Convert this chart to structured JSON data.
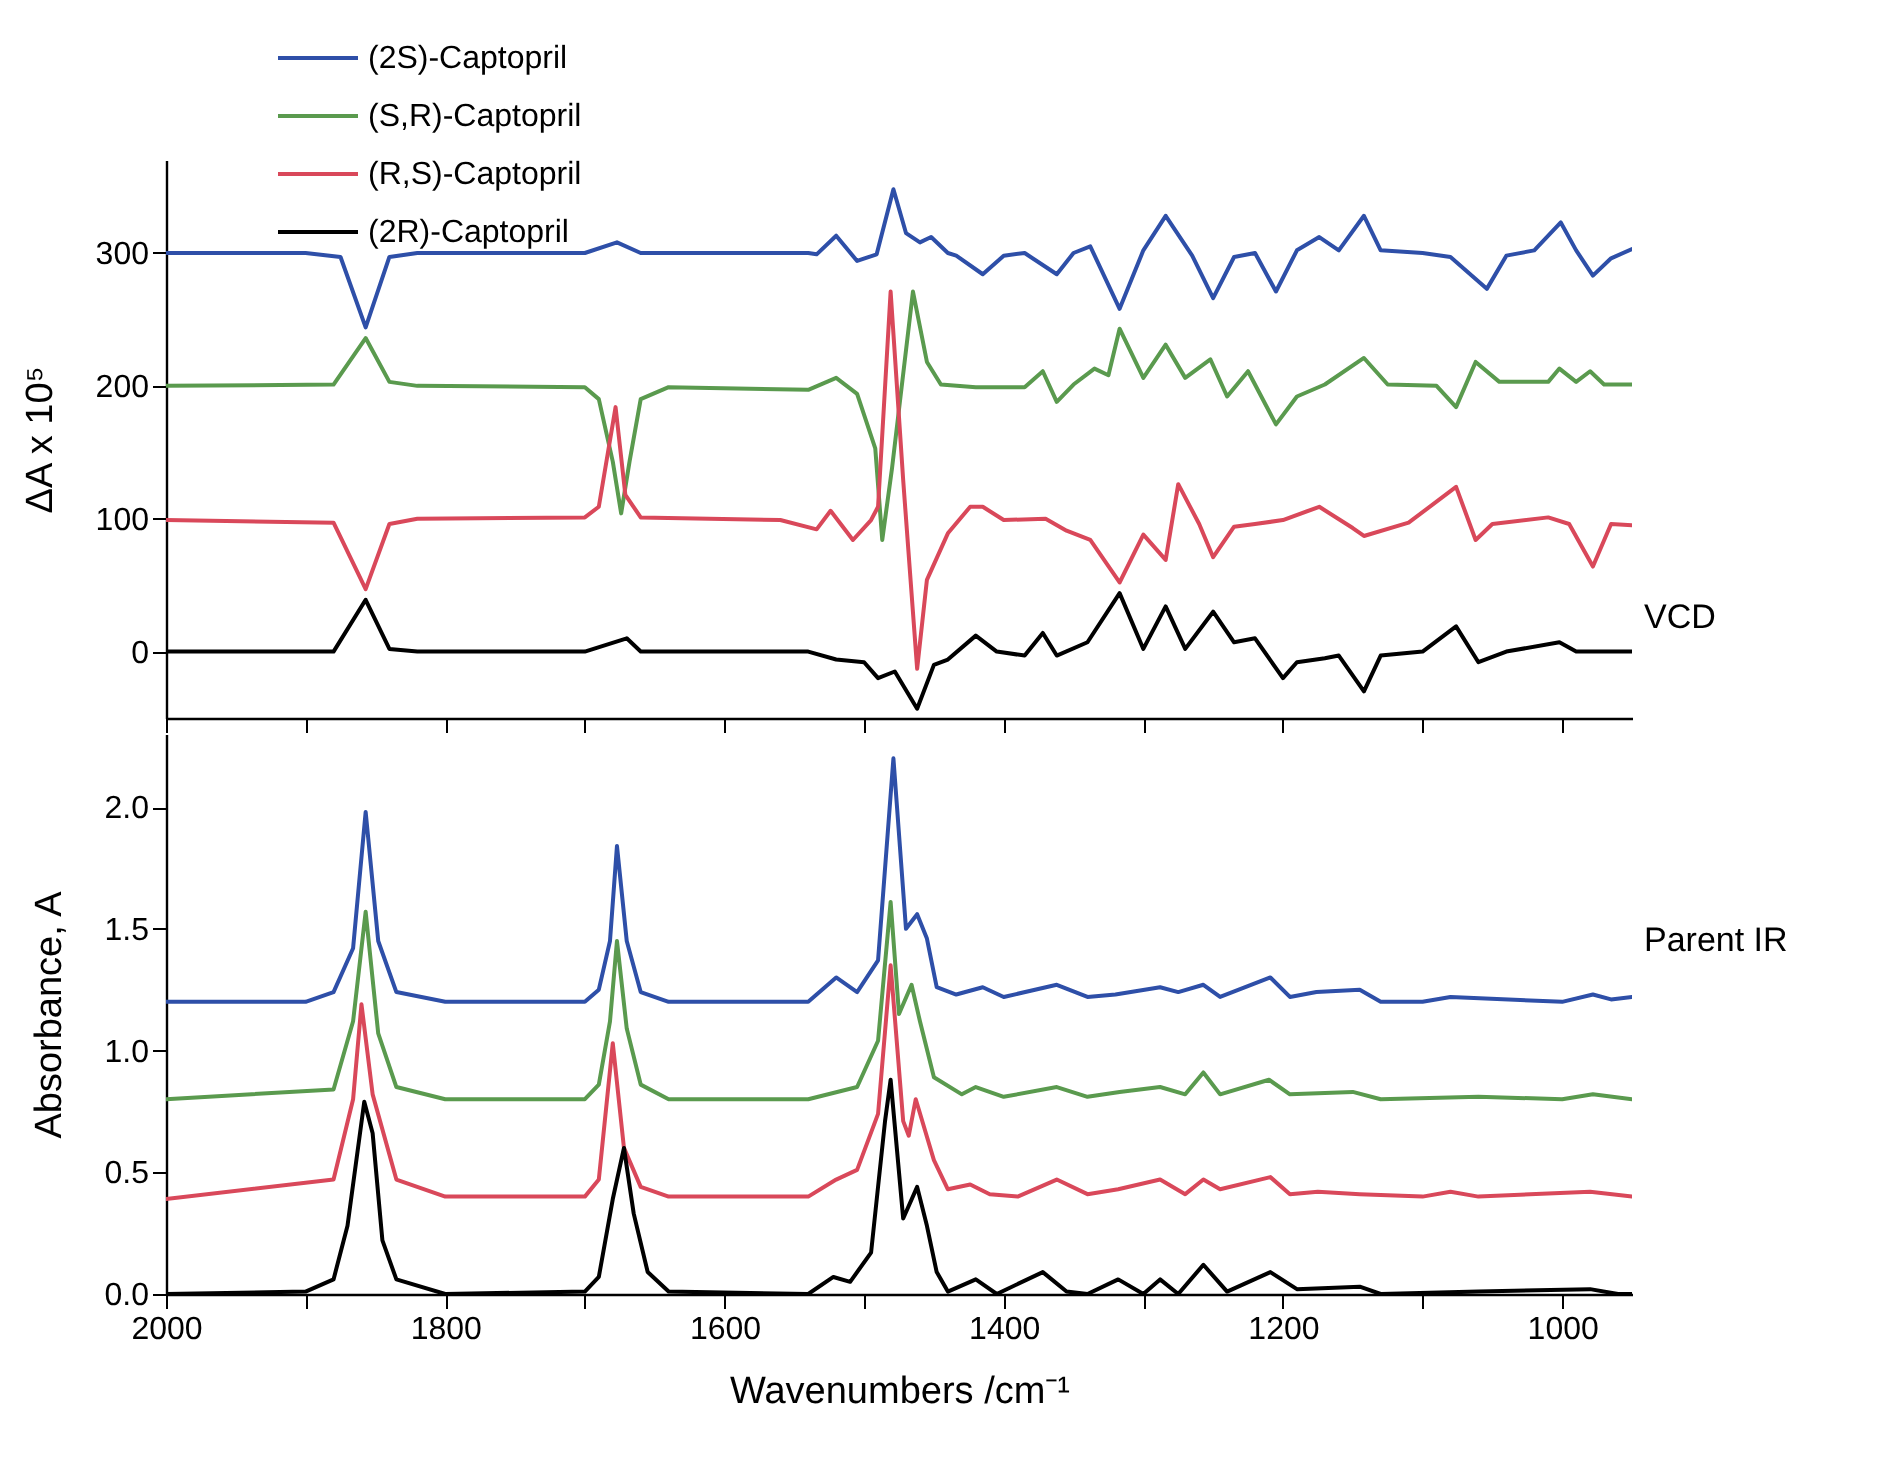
{
  "chart_data": [
    {
      "type": "line",
      "ylabel": "ΔA x 10⁵",
      "xlim": [
        2000,
        950
      ],
      "ylim": [
        -50,
        370
      ],
      "tick_labels": "y",
      "legend": "top left",
      "annotations": [
        "VCD"
      ],
      "xticks": [
        2000,
        {
          "value": 1900,
          "label": null
        },
        1800,
        {
          "value": 1700,
          "label": null
        },
        1600,
        {
          "value": 1500,
          "label": null
        },
        1400,
        {
          "value": 1300,
          "label": null
        },
        1200,
        {
          "value": 1100,
          "label": null
        },
        1000
      ],
      "yticks": [
        0,
        100,
        200,
        300
      ],
      "series": [
        {
          "name": "(2S)-Captopril",
          "color": "#2e4fa8",
          "x": [
            2000,
            1900,
            1875,
            1857,
            1840,
            1820,
            1700,
            1677,
            1660,
            1540,
            1534,
            1520,
            1505,
            1491,
            1479,
            1470,
            1460,
            1452,
            1440,
            1434,
            1415,
            1400,
            1385,
            1362,
            1350,
            1338,
            1317,
            1300,
            1284,
            1265,
            1250,
            1235,
            1220,
            1205,
            1190,
            1174,
            1160,
            1142,
            1130,
            1100,
            1080,
            1054,
            1040,
            1020,
            1001,
            990,
            978,
            965,
            950
          ],
          "values": [
            300,
            300,
            297,
            244,
            297,
            300,
            300,
            308,
            300,
            300,
            299,
            313,
            294,
            299,
            348,
            315,
            308,
            312,
            300,
            298,
            284,
            298,
            300,
            284,
            300,
            305,
            258,
            302,
            328,
            298,
            266,
            297,
            300,
            271,
            302,
            312,
            302,
            328,
            302,
            300,
            297,
            273,
            298,
            302,
            323,
            302,
            283,
            296,
            303
          ]
        },
        {
          "name": "(S,R)-Captopril",
          "color": "#5a9a4e",
          "x": [
            2000,
            1880,
            1857,
            1840,
            1820,
            1700,
            1690,
            1680,
            1674,
            1668,
            1660,
            1640,
            1540,
            1520,
            1505,
            1492,
            1487,
            1480,
            1465,
            1455,
            1445,
            1420,
            1385,
            1372,
            1362,
            1350,
            1335,
            1325,
            1317,
            1300,
            1284,
            1270,
            1252,
            1240,
            1225,
            1205,
            1190,
            1170,
            1142,
            1125,
            1090,
            1076,
            1062,
            1045,
            1010,
            1002,
            990,
            980,
            970,
            950
          ],
          "values": [
            200,
            201,
            236,
            203,
            200,
            199,
            190,
            143,
            104,
            143,
            190,
            199,
            197,
            206,
            194,
            153,
            84,
            138,
            271,
            218,
            201,
            199,
            199,
            211,
            188,
            201,
            213,
            208,
            243,
            206,
            231,
            206,
            220,
            192,
            211,
            171,
            192,
            201,
            221,
            201,
            200,
            184,
            218,
            203,
            203,
            213,
            203,
            211,
            201,
            201
          ]
        },
        {
          "name": "(R,S)-Captopril",
          "color": "#d9485a",
          "x": [
            2000,
            1880,
            1857,
            1840,
            1820,
            1700,
            1690,
            1678,
            1671,
            1660,
            1560,
            1534,
            1524,
            1508,
            1495,
            1490,
            1481,
            1472,
            1462,
            1455,
            1440,
            1424,
            1415,
            1400,
            1370,
            1355,
            1338,
            1317,
            1300,
            1284,
            1275,
            1260,
            1250,
            1235,
            1220,
            1200,
            1174,
            1150,
            1142,
            1110,
            1076,
            1062,
            1050,
            1010,
            995,
            978,
            965,
            950
          ],
          "values": [
            99,
            97,
            47,
            96,
            100,
            101,
            109,
            184,
            118,
            101,
            99,
            92,
            106,
            84,
            99,
            109,
            271,
            129,
            -13,
            54,
            89,
            109,
            109,
            99,
            100,
            91,
            84,
            52,
            88,
            69,
            126,
            96,
            71,
            94,
            96,
            99,
            109,
            93,
            87,
            97,
            124,
            84,
            96,
            101,
            96,
            64,
            96,
            95
          ]
        },
        {
          "name": "(2R)-Captopril",
          "color": "#000000",
          "x": [
            2000,
            1880,
            1857,
            1840,
            1820,
            1700,
            1670,
            1660,
            1540,
            1520,
            1500,
            1490,
            1478,
            1462,
            1450,
            1440,
            1420,
            1405,
            1385,
            1372,
            1362,
            1340,
            1317,
            1300,
            1284,
            1270,
            1250,
            1235,
            1220,
            1200,
            1190,
            1170,
            1160,
            1142,
            1130,
            1100,
            1076,
            1060,
            1040,
            1002,
            990,
            950
          ],
          "values": [
            0,
            0,
            39,
            2,
            0,
            0,
            10,
            0,
            0,
            -6,
            -8,
            -20,
            -15,
            -43,
            -10,
            -6,
            12,
            0,
            -3,
            14,
            -3,
            7,
            44,
            2,
            34,
            2,
            30,
            7,
            10,
            -20,
            -8,
            -5,
            -3,
            -30,
            -3,
            0,
            19,
            -8,
            0,
            7,
            0,
            0
          ]
        }
      ]
    },
    {
      "type": "line",
      "xlabel": "Wavenumbers /cm⁻¹",
      "ylabel": "Absorbance, A",
      "xlim": [
        2000,
        950
      ],
      "ylim": [
        0,
        2.3
      ],
      "annotations": [
        "Parent IR"
      ],
      "xticks": [
        2000,
        {
          "value": 1900,
          "label": null
        },
        1800,
        {
          "value": 1700,
          "label": null
        },
        1600,
        {
          "value": 1500,
          "label": null
        },
        1400,
        {
          "value": 1300,
          "label": null
        },
        1200,
        {
          "value": 1100,
          "label": null
        },
        1000
      ],
      "yticks": [
        {
          "value": 0,
          "label": "0.0"
        },
        0.5,
        {
          "value": 1,
          "label": "1.0"
        },
        1.5,
        {
          "value": 2,
          "label": "2.0"
        }
      ],
      "series": [
        {
          "color": "#2e4fa8",
          "x": [
            2000,
            1900,
            1880,
            1866,
            1857,
            1848,
            1835,
            1800,
            1700,
            1690,
            1682,
            1677,
            1670,
            1660,
            1640,
            1540,
            1520,
            1505,
            1490,
            1479,
            1470,
            1462,
            1455,
            1448,
            1434,
            1415,
            1400,
            1362,
            1340,
            1320,
            1288,
            1275,
            1257,
            1245,
            1209,
            1195,
            1176,
            1145,
            1130,
            1100,
            1080,
            1000,
            978,
            965,
            950
          ],
          "values": [
            1.2,
            1.2,
            1.24,
            1.42,
            1.98,
            1.45,
            1.24,
            1.2,
            1.2,
            1.25,
            1.45,
            1.84,
            1.45,
            1.24,
            1.2,
            1.2,
            1.3,
            1.24,
            1.37,
            2.2,
            1.5,
            1.56,
            1.46,
            1.26,
            1.23,
            1.26,
            1.22,
            1.27,
            1.22,
            1.23,
            1.26,
            1.24,
            1.27,
            1.22,
            1.3,
            1.22,
            1.24,
            1.25,
            1.2,
            1.2,
            1.22,
            1.2,
            1.23,
            1.21,
            1.22
          ]
        },
        {
          "color": "#5a9a4e",
          "x": [
            2000,
            1880,
            1866,
            1857,
            1848,
            1835,
            1800,
            1700,
            1690,
            1682,
            1677,
            1670,
            1660,
            1640,
            1540,
            1505,
            1490,
            1481,
            1475,
            1466,
            1460,
            1450,
            1430,
            1420,
            1400,
            1362,
            1340,
            1317,
            1288,
            1270,
            1257,
            1245,
            1210,
            1195,
            1150,
            1130,
            1060,
            1000,
            978,
            950
          ],
          "values": [
            0.8,
            0.84,
            1.12,
            1.57,
            1.07,
            0.85,
            0.8,
            0.8,
            0.86,
            1.12,
            1.45,
            1.09,
            0.86,
            0.8,
            0.8,
            0.85,
            1.04,
            1.61,
            1.15,
            1.27,
            1.12,
            0.89,
            0.82,
            0.85,
            0.81,
            0.85,
            0.81,
            0.83,
            0.85,
            0.82,
            0.91,
            0.82,
            0.88,
            0.82,
            0.83,
            0.8,
            0.81,
            0.8,
            0.82,
            0.8
          ]
        },
        {
          "color": "#d9485a",
          "x": [
            2000,
            1880,
            1866,
            1860,
            1852,
            1835,
            1800,
            1700,
            1690,
            1680,
            1672,
            1660,
            1640,
            1540,
            1520,
            1505,
            1490,
            1481,
            1472,
            1468,
            1463,
            1450,
            1440,
            1424,
            1410,
            1390,
            1362,
            1340,
            1318,
            1288,
            1270,
            1257,
            1245,
            1209,
            1195,
            1175,
            1145,
            1100,
            1080,
            1060,
            980,
            950
          ],
          "values": [
            0.39,
            0.47,
            0.8,
            1.19,
            0.82,
            0.47,
            0.4,
            0.4,
            0.47,
            1.03,
            0.6,
            0.44,
            0.4,
            0.4,
            0.47,
            0.51,
            0.74,
            1.35,
            0.71,
            0.65,
            0.8,
            0.55,
            0.43,
            0.45,
            0.41,
            0.4,
            0.47,
            0.41,
            0.43,
            0.47,
            0.41,
            0.47,
            0.43,
            0.48,
            0.41,
            0.42,
            0.41,
            0.4,
            0.42,
            0.4,
            0.42,
            0.4
          ]
        },
        {
          "color": "#000000",
          "x": [
            2000,
            1900,
            1880,
            1870,
            1858,
            1852,
            1845,
            1835,
            1800,
            1700,
            1690,
            1680,
            1672,
            1665,
            1655,
            1640,
            1540,
            1522,
            1510,
            1495,
            1485,
            1481,
            1472,
            1462,
            1455,
            1448,
            1440,
            1420,
            1405,
            1372,
            1355,
            1340,
            1318,
            1300,
            1288,
            1275,
            1257,
            1240,
            1209,
            1190,
            1145,
            1130,
            1060,
            980,
            960,
            950
          ],
          "values": [
            0,
            0.01,
            0.06,
            0.28,
            0.79,
            0.66,
            0.22,
            0.06,
            0,
            0.01,
            0.07,
            0.39,
            0.6,
            0.33,
            0.09,
            0.01,
            0,
            0.07,
            0.05,
            0.17,
            0.71,
            0.88,
            0.31,
            0.44,
            0.28,
            0.09,
            0.01,
            0.06,
            0,
            0.09,
            0.01,
            0,
            0.06,
            0,
            0.06,
            0,
            0.12,
            0.01,
            0.09,
            0.02,
            0.03,
            0,
            0.01,
            0.02,
            0,
            0
          ]
        }
      ]
    }
  ]
}
